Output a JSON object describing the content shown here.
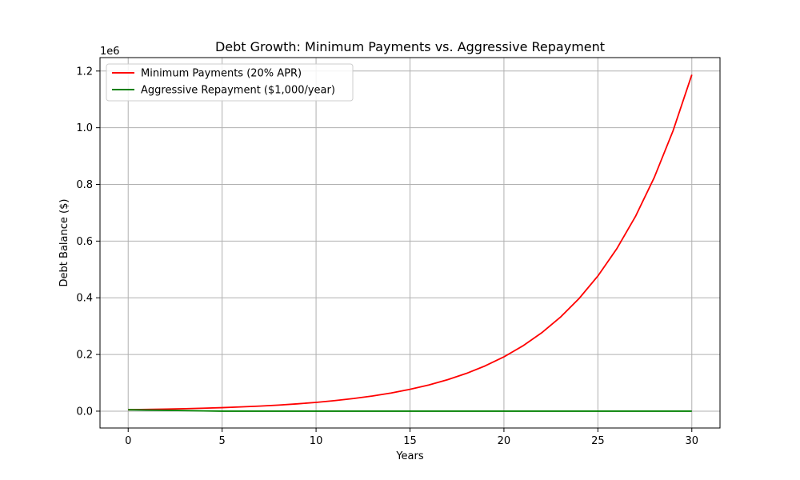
{
  "chart_data": {
    "type": "line",
    "title": "Debt Growth: Minimum Payments vs. Aggressive Repayment",
    "xlabel": "Years",
    "ylabel": "Debt Balance ($)",
    "y_offset_label": "1e6",
    "xlim": [
      -1.5,
      31.5
    ],
    "ylim": [
      -0.0594,
      1.2474
    ],
    "x_ticks": [
      0,
      5,
      10,
      15,
      20,
      25,
      30
    ],
    "x_tick_labels": [
      "0",
      "5",
      "10",
      "15",
      "20",
      "25",
      "30"
    ],
    "y_ticks": [
      0.0,
      0.2,
      0.4,
      0.6,
      0.8,
      1.0,
      1.2
    ],
    "y_tick_labels": [
      "0.0",
      "0.2",
      "0.4",
      "0.6",
      "0.8",
      "1.0",
      "1.2"
    ],
    "grid": true,
    "legend_position": "top-left",
    "x": [
      0,
      1,
      2,
      3,
      4,
      5,
      6,
      7,
      8,
      9,
      10,
      11,
      12,
      13,
      14,
      15,
      16,
      17,
      18,
      19,
      20,
      21,
      22,
      23,
      24,
      25,
      26,
      27,
      28,
      29,
      30
    ],
    "series": [
      {
        "name": "Minimum Payments (20% APR)",
        "color": "#ff0000",
        "values": [
          0.005,
          0.006,
          0.0072,
          0.00864,
          0.010368,
          0.012442,
          0.01493,
          0.017916,
          0.021499,
          0.025799,
          0.030959,
          0.03715,
          0.04458,
          0.053496,
          0.064196,
          0.077035,
          0.092442,
          0.11093,
          0.133116,
          0.159739,
          0.191687,
          0.230025,
          0.27603,
          0.331236,
          0.397483,
          0.47698,
          0.572376,
          0.686851,
          0.824221,
          0.989065,
          1.186878
        ]
      },
      {
        "name": "Aggressive Repayment ($1,000/year)",
        "color": "#008000",
        "values": [
          0.005,
          0.004,
          0.003,
          0.002,
          0.001,
          0,
          0,
          0,
          0,
          0,
          0,
          0,
          0,
          0,
          0,
          0,
          0,
          0,
          0,
          0,
          0,
          0,
          0,
          0,
          0,
          0,
          0,
          0,
          0,
          0,
          0
        ]
      }
    ]
  }
}
